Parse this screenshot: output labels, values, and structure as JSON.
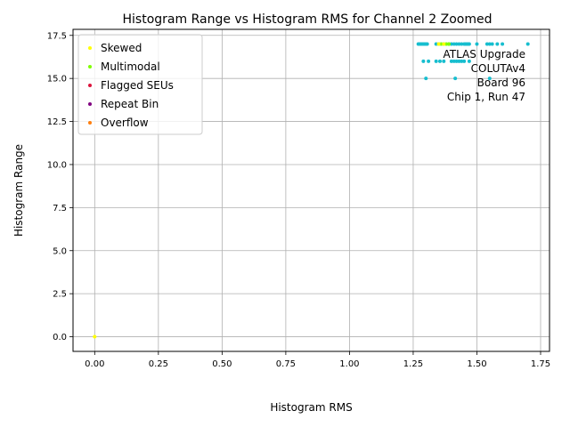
{
  "chart_data": {
    "type": "scatter",
    "title": "Histogram Range vs Histogram RMS for Channel 2 Zoomed",
    "xlabel": "Histogram RMS",
    "ylabel": "Histogram Range",
    "xlim": [
      -0.085,
      1.785
    ],
    "ylim": [
      -0.85,
      17.85
    ],
    "xticks": [
      0.0,
      0.25,
      0.5,
      0.75,
      1.0,
      1.25,
      1.5,
      1.75
    ],
    "yticks": [
      0.0,
      2.5,
      5.0,
      7.5,
      10.0,
      12.5,
      15.0,
      17.5
    ],
    "xtick_labels": [
      "0.00",
      "0.25",
      "0.50",
      "0.75",
      "1.00",
      "1.25",
      "1.50",
      "1.75"
    ],
    "ytick_labels": [
      "0.0",
      "2.5",
      "5.0",
      "7.5",
      "10.0",
      "12.5",
      "15.0",
      "17.5"
    ],
    "grid": true,
    "legend_position": "top-left",
    "legend": [
      {
        "label": "Skewed",
        "color": "#ffff00"
      },
      {
        "label": "Multimodal",
        "color": "#7fff00"
      },
      {
        "label": "Flagged SEUs",
        "color": "#dc143c"
      },
      {
        "label": "Repeat Bin",
        "color": "#800080"
      },
      {
        "label": "Overflow",
        "color": "#ff7f0e"
      }
    ],
    "annotation": [
      "ATLAS Upgrade",
      "COLUTAv4",
      "Board 96",
      "Chip 1, Run 47"
    ],
    "series": [
      {
        "color": "#17becf",
        "points": [
          [
            1.27,
            17
          ],
          [
            1.275,
            17
          ],
          [
            1.28,
            17
          ],
          [
            1.285,
            17
          ],
          [
            1.29,
            17
          ],
          [
            1.295,
            17
          ],
          [
            1.3,
            17
          ],
          [
            1.305,
            17
          ],
          [
            1.34,
            17
          ],
          [
            1.35,
            17
          ],
          [
            1.37,
            17
          ],
          [
            1.39,
            17
          ],
          [
            1.4,
            17
          ],
          [
            1.41,
            17
          ],
          [
            1.42,
            17
          ],
          [
            1.43,
            17
          ],
          [
            1.44,
            17
          ],
          [
            1.45,
            17
          ],
          [
            1.455,
            17
          ],
          [
            1.46,
            17
          ],
          [
            1.465,
            17
          ],
          [
            1.47,
            17
          ],
          [
            1.5,
            17
          ],
          [
            1.54,
            17
          ],
          [
            1.55,
            17
          ],
          [
            1.56,
            17
          ],
          [
            1.58,
            17
          ],
          [
            1.6,
            17
          ],
          [
            1.7,
            17
          ],
          [
            1.29,
            16
          ],
          [
            1.31,
            16
          ],
          [
            1.34,
            16
          ],
          [
            1.355,
            16
          ],
          [
            1.37,
            16
          ],
          [
            1.4,
            16
          ],
          [
            1.41,
            16
          ],
          [
            1.42,
            16
          ],
          [
            1.43,
            16
          ],
          [
            1.44,
            16
          ],
          [
            1.45,
            16
          ],
          [
            1.47,
            16
          ],
          [
            1.3,
            15
          ],
          [
            1.415,
            15
          ],
          [
            1.55,
            15
          ]
        ]
      },
      {
        "color": "#7fff00",
        "points": [
          [
            1.36,
            17
          ],
          [
            1.38,
            17
          ],
          [
            1.39,
            17
          ]
        ]
      },
      {
        "color": "#ffff00",
        "points": [
          [
            1.35,
            17
          ],
          [
            1.37,
            17
          ],
          [
            0.0,
            0.0
          ]
        ]
      }
    ]
  }
}
